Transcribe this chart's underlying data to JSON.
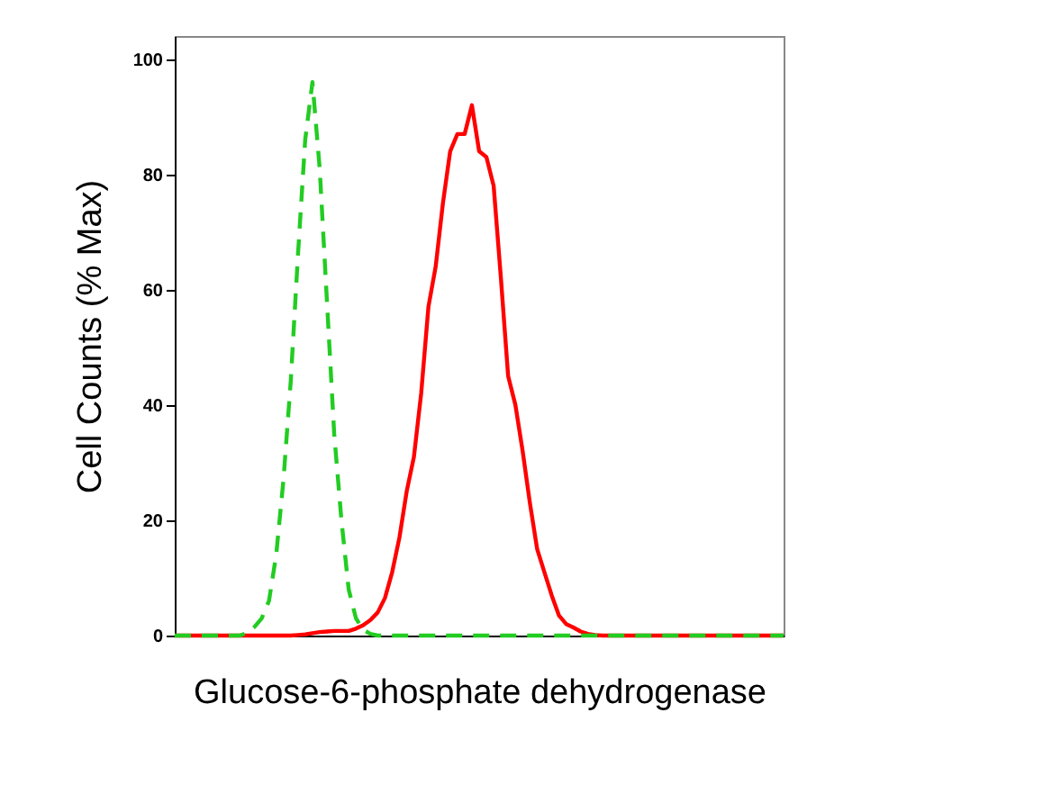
{
  "chart_data": {
    "type": "line",
    "xlabel": "Glucose-6-phosphate dehydrogenase",
    "ylabel": "Cell Counts (% Max)",
    "categories": [
      null,
      null,
      null,
      null,
      null,
      null,
      null,
      null,
      null,
      null,
      null,
      null,
      null,
      null,
      null,
      null,
      null,
      null,
      null,
      null,
      null,
      null,
      null,
      null,
      null,
      null,
      null,
      null,
      null,
      null,
      null,
      null,
      null,
      null,
      null,
      null,
      null,
      null,
      null,
      null,
      null,
      null,
      null,
      null,
      null,
      null,
      null,
      null,
      null,
      null,
      null,
      null,
      null,
      null,
      null,
      null,
      null,
      null,
      null,
      null,
      null,
      null,
      null,
      null,
      null,
      null,
      null,
      null,
      null,
      null,
      null,
      null,
      null,
      null,
      null,
      null,
      null,
      null,
      null,
      null,
      null,
      null,
      null,
      null,
      null
    ],
    "series": [
      {
        "color": "#22cc22",
        "line_style": "dashed",
        "values": [
          0,
          0,
          0,
          0,
          0,
          0,
          0,
          0,
          0,
          0,
          0.5,
          1.5,
          3,
          6,
          14,
          27,
          44,
          66,
          86,
          96,
          81,
          58,
          35,
          20,
          8,
          3,
          1,
          0.3,
          0,
          0,
          0,
          0,
          0,
          0,
          0,
          0,
          0,
          0,
          0,
          0,
          0,
          0,
          0,
          0,
          0,
          0,
          0,
          0,
          0,
          0,
          0,
          0,
          0,
          0,
          0,
          0,
          0,
          0,
          0,
          0,
          0,
          0,
          0,
          0,
          0,
          0,
          0,
          0,
          0,
          0,
          0,
          0,
          0,
          0,
          0,
          0,
          0,
          0,
          0,
          0,
          0,
          0,
          0,
          0,
          0
        ]
      },
      {
        "color": "#ff0000",
        "line_style": "solid",
        "values": [
          0,
          0,
          0,
          0,
          0,
          0,
          0,
          0,
          0,
          0,
          0,
          0,
          0,
          0,
          0,
          0,
          0,
          0.1,
          0.2,
          0.4,
          0.6,
          0.7,
          0.8,
          0.8,
          0.8,
          1.2,
          1.8,
          2.7,
          4,
          6.5,
          11,
          17,
          25,
          31,
          42,
          57,
          64,
          75,
          84,
          87,
          87,
          92,
          84,
          83,
          78,
          62,
          45,
          40,
          32,
          23,
          15,
          11,
          7,
          3.5,
          2,
          1.4,
          0.7,
          0.3,
          0.1,
          0,
          0,
          0,
          0,
          0,
          0,
          0,
          0,
          0,
          0,
          0,
          0,
          0,
          0,
          0,
          0,
          0,
          0,
          0,
          0,
          0,
          0,
          0,
          0,
          0,
          0
        ]
      }
    ],
    "ylim": [
      0,
      104
    ],
    "yticks": [
      0,
      20,
      40,
      60,
      80,
      100
    ],
    "tick_labels": "y",
    "grid": false
  }
}
